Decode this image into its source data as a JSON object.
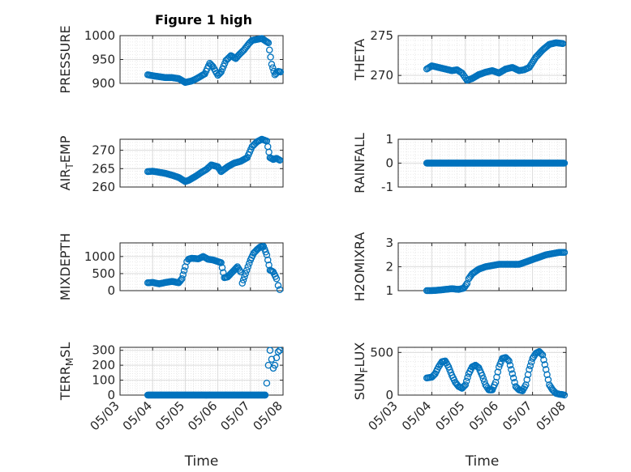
{
  "chart_data": {
    "type": "scatter",
    "title": "Figure 1 high",
    "xlabel": "Time",
    "x_tick_labels": [
      "05/03",
      "05/04",
      "05/05",
      "05/06",
      "05/07",
      "05/08"
    ],
    "marker_color": "#0072BD",
    "panels": [
      {
        "ylabel": "PRESSURE",
        "ylim": [
          900,
          1000
        ],
        "yticks": [
          900,
          950,
          1000
        ],
        "x": [
          3.85,
          4.0,
          4.2,
          4.4,
          4.6,
          4.8,
          5.0,
          5.2,
          5.35,
          5.5,
          5.6,
          5.75,
          5.85,
          6.0,
          6.1,
          6.25,
          6.4,
          6.55,
          6.65,
          6.8,
          6.95,
          7.05,
          7.2,
          7.35,
          7.55,
          7.65,
          7.75,
          7.85,
          7.92
        ],
        "y": [
          918,
          916,
          914,
          912,
          912,
          910,
          902,
          905,
          910,
          916,
          920,
          942,
          935,
          917,
          924,
          948,
          958,
          952,
          960,
          970,
          983,
          990,
          992,
          994,
          985,
          940,
          918,
          925,
          924
        ]
      },
      {
        "ylabel": "THETA",
        "ylim": [
          269,
          275
        ],
        "yticks": [
          270,
          275
        ],
        "x": [
          3.85,
          4.0,
          4.2,
          4.4,
          4.6,
          4.75,
          4.9,
          5.05,
          5.2,
          5.4,
          5.6,
          5.8,
          6.0,
          6.2,
          6.4,
          6.6,
          6.75,
          6.9,
          7.1,
          7.3,
          7.5,
          7.7,
          7.9
        ],
        "y": [
          270.8,
          271.2,
          271.0,
          270.8,
          270.6,
          270.7,
          270.3,
          269.4,
          269.6,
          270.1,
          270.4,
          270.6,
          270.3,
          270.8,
          271.0,
          270.6,
          270.7,
          271.0,
          272.3,
          273.2,
          273.9,
          274.1,
          274.0
        ]
      },
      {
        "ylabel": "AIR_TEMP",
        "ylim": [
          260,
          273
        ],
        "yticks": [
          260,
          265,
          270
        ],
        "x": [
          3.85,
          4.0,
          4.2,
          4.4,
          4.6,
          4.8,
          5.0,
          5.1,
          5.3,
          5.5,
          5.65,
          5.8,
          6.0,
          6.1,
          6.3,
          6.5,
          6.7,
          6.9,
          7.05,
          7.2,
          7.35,
          7.5,
          7.6,
          7.7,
          7.8,
          7.9
        ],
        "y": [
          264.2,
          264.3,
          264.0,
          263.7,
          263.2,
          262.6,
          261.5,
          261.8,
          262.8,
          264.0,
          264.8,
          266.0,
          265.5,
          264.2,
          265.5,
          266.5,
          267.0,
          268.0,
          271.0,
          272.3,
          273.0,
          272.5,
          268.0,
          267.5,
          267.8,
          267.3
        ]
      },
      {
        "ylabel": "RAINFALL",
        "ylim": [
          -1,
          1
        ],
        "yticks": [
          -1,
          0,
          1
        ],
        "x": [
          3.85,
          7.95
        ],
        "y": [
          0,
          0
        ],
        "dense": true
      },
      {
        "ylabel": "MIXDEPTH",
        "ylim": [
          0,
          1400
        ],
        "yticks": [
          0,
          500,
          1000
        ],
        "x": [
          3.85,
          4.0,
          4.2,
          4.4,
          4.6,
          4.8,
          4.9,
          5.0,
          5.05,
          5.1,
          5.2,
          5.4,
          5.55,
          5.7,
          5.85,
          6.0,
          6.1,
          6.2,
          6.3,
          6.4,
          6.5,
          6.6,
          6.7,
          6.75,
          6.85,
          7.0,
          7.1,
          7.2,
          7.3,
          7.4,
          7.5,
          7.6,
          7.7,
          7.8,
          7.85,
          7.9
        ],
        "y": [
          230,
          240,
          200,
          240,
          270,
          230,
          350,
          700,
          850,
          920,
          950,
          930,
          1000,
          920,
          900,
          850,
          820,
          380,
          400,
          500,
          600,
          700,
          550,
          220,
          500,
          900,
          1100,
          1200,
          1280,
          1300,
          1050,
          600,
          550,
          350,
          150,
          30
        ]
      },
      {
        "ylabel": "H2OMIXRA",
        "ylim": [
          1,
          3
        ],
        "yticks": [
          1,
          2,
          3
        ],
        "x": [
          3.85,
          4.0,
          4.2,
          4.4,
          4.6,
          4.8,
          4.95,
          5.05,
          5.1,
          5.2,
          5.4,
          5.6,
          5.8,
          6.0,
          6.2,
          6.4,
          6.6,
          6.8,
          7.0,
          7.2,
          7.4,
          7.6,
          7.8,
          7.95
        ],
        "y": [
          1.0,
          1.0,
          1.02,
          1.05,
          1.08,
          1.05,
          1.1,
          1.3,
          1.5,
          1.7,
          1.9,
          2.0,
          2.05,
          2.1,
          2.1,
          2.1,
          2.1,
          2.2,
          2.3,
          2.4,
          2.5,
          2.55,
          2.6,
          2.6
        ]
      },
      {
        "ylabel": "TERR_MSL",
        "ylim": [
          0,
          320
        ],
        "yticks": [
          0,
          100,
          200,
          300
        ],
        "x": [
          3.85,
          7.45,
          7.5,
          7.55,
          7.6,
          7.65,
          7.7,
          7.75,
          7.8,
          7.85,
          7.9
        ],
        "y": [
          0,
          0,
          80,
          200,
          300,
          240,
          180,
          200,
          250,
          290,
          300
        ],
        "dense_zero_until": 7.45
      },
      {
        "ylabel": "SUN_FLUX",
        "ylim": [
          0,
          560
        ],
        "yticks": [
          0,
          500
        ],
        "x": [
          3.85,
          4.0,
          4.1,
          4.2,
          4.3,
          4.4,
          4.5,
          4.6,
          4.7,
          4.8,
          4.9,
          5.0,
          5.1,
          5.2,
          5.3,
          5.4,
          5.5,
          5.6,
          5.7,
          5.8,
          5.9,
          6.0,
          6.1,
          6.2,
          6.3,
          6.4,
          6.5,
          6.6,
          6.7,
          6.8,
          6.9,
          7.0,
          7.1,
          7.2,
          7.3,
          7.4,
          7.5,
          7.6,
          7.7,
          7.8,
          7.9,
          7.95
        ],
        "y": [
          200,
          210,
          250,
          330,
          390,
          400,
          330,
          230,
          150,
          100,
          80,
          120,
          250,
          330,
          350,
          320,
          230,
          120,
          60,
          60,
          150,
          330,
          430,
          440,
          400,
          250,
          100,
          60,
          50,
          120,
          300,
          430,
          490,
          510,
          470,
          300,
          120,
          60,
          20,
          10,
          5,
          0
        ]
      }
    ]
  }
}
